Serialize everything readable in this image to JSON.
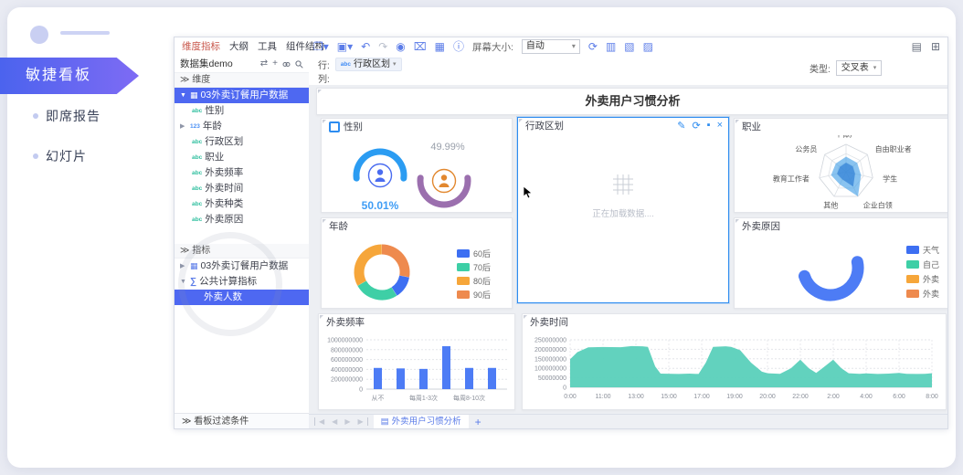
{
  "sidebar": {
    "active_item": "敏捷看板",
    "items": [
      {
        "label": "即席报告"
      },
      {
        "label": "幻灯片"
      }
    ]
  },
  "left_panel": {
    "tabs": [
      {
        "label": "维度指标"
      },
      {
        "label": "大纲"
      },
      {
        "label": "工具"
      },
      {
        "label": "组件结构"
      }
    ],
    "dataset_name": "数据集demo",
    "dimensions_header": "维度",
    "dimension_root": "03外卖订餐用户数据",
    "dimension_fields": [
      "性别",
      "年龄",
      "行政区划",
      "职业",
      "外卖频率",
      "外卖时间",
      "外卖种类",
      "外卖原因"
    ],
    "measures_header": "指标",
    "measure_root": "03外卖订餐用户数据",
    "measure_calc_group": "公共计算指标",
    "measure_selected": "外卖人数",
    "filter_bar_label": "看板过滤条件"
  },
  "toolbar": {
    "screen_size_label": "屏幕大小:",
    "screen_size_value": "自动",
    "icons": [
      {
        "name": "open-menu-icon",
        "glyph": "❐▾"
      },
      {
        "name": "save-menu-icon",
        "glyph": "▣▾"
      },
      {
        "name": "undo-icon",
        "glyph": "↶"
      },
      {
        "name": "redo-icon",
        "glyph": "↷"
      },
      {
        "name": "preview-icon",
        "glyph": "◉"
      },
      {
        "name": "delete-icon",
        "glyph": "⌧"
      },
      {
        "name": "export-image-icon",
        "glyph": "▦"
      },
      {
        "name": "info-icon",
        "glyph": "ⓘ"
      },
      {
        "name": "refresh-icon",
        "glyph": "⟳"
      },
      {
        "name": "grid-layout-icon-1",
        "glyph": "▥"
      },
      {
        "name": "grid-layout-icon-2",
        "glyph": "▧"
      },
      {
        "name": "grid-layout-icon-3",
        "glyph": "▨"
      }
    ],
    "right_icons": [
      {
        "name": "chart-preview-icon",
        "glyph": "▤"
      },
      {
        "name": "widget-grid-icon",
        "glyph": "⊞"
      }
    ]
  },
  "query_area": {
    "row_label": "行:",
    "row_field": "行政区划",
    "col_label": "列:",
    "type_label": "类型:",
    "type_value": "交叉表"
  },
  "dashboard_title": "外卖用户习惯分析",
  "bottom_bar": {
    "tab_label": "外卖用户习惯分析",
    "add_label": "+"
  },
  "colors": {
    "accent_blue": "#4e68f1",
    "toolbar_icon_blue": "#5b7ce8",
    "selected_panel_border": "#2d8cf0",
    "active_tab_text": "#c8574b",
    "bar_blue": "#4d7cf5",
    "area_teal": "#5ad0ba",
    "banner_gradient_start": "#4b63ee",
    "banner_gradient_end": "#7e6bf4"
  },
  "chart_data": [
    {
      "id": "gender",
      "type": "gauge",
      "title": "性别",
      "series": [
        {
          "label": "50.01%",
          "value": 50.01,
          "arc_color": "#2b9cf2",
          "icon_color": "#4a6cf0",
          "label_color": "#3f9df5"
        },
        {
          "label": "49.99%",
          "value": 49.99,
          "arc_color": "#9b6fae",
          "icon_color": "#e2882f",
          "label_color": "#9aa0ab"
        }
      ]
    },
    {
      "id": "admin_region",
      "type": "table",
      "title": "行政区划",
      "status": "loading",
      "loading_text": "正在加载数据...."
    },
    {
      "id": "occupation",
      "type": "radar",
      "title": "职业",
      "axes": [
        "个体户",
        "自由职业者",
        "学生",
        "企业白领",
        "其他",
        "教育工作者",
        "公务员"
      ],
      "values": [
        0.55,
        0.52,
        0.56,
        1.0,
        0.52,
        0.56,
        0.48
      ],
      "max": 1,
      "fill": "#4aa3e8",
      "inner_fill": "#2f7fd4"
    },
    {
      "id": "age",
      "type": "pie",
      "title": "年龄",
      "legend": [
        "60后",
        "70后",
        "80后",
        "90后"
      ],
      "legend_colors": [
        "#3d6ff2",
        "#3ecfa6",
        "#f6a63a",
        "#ee8a4e"
      ],
      "slices": [
        {
          "label": "90后",
          "value": 28,
          "color": "#ee8a4e"
        },
        {
          "label": "60后",
          "value": 13,
          "color": "#3d6ff2"
        },
        {
          "label": "70后",
          "value": 26,
          "color": "#3ecfa6"
        },
        {
          "label": "80后",
          "value": 33,
          "color": "#f6a63a"
        }
      ]
    },
    {
      "id": "reason",
      "type": "pie",
      "title": "外卖原因",
      "status": "loading_partial",
      "arc_color": "#4d7cf5",
      "legend": [
        {
          "label": "天气",
          "color": "#3d6ff2"
        },
        {
          "label": "自己",
          "color": "#3ecfa6"
        },
        {
          "label": "外卖",
          "color": "#f6a63a"
        },
        {
          "label": "外卖",
          "color": "#ee8a4e"
        }
      ]
    },
    {
      "id": "frequency",
      "type": "bar",
      "title": "外卖频率",
      "categories": [
        "从不",
        "",
        "每周1-3次",
        "",
        "每周8-10次",
        ""
      ],
      "values": [
        430000000,
        420000000,
        410000000,
        870000000,
        430000000,
        430000000
      ],
      "y_ticks": [
        "1000000000",
        "800000000",
        "600000000",
        "400000000",
        "200000000",
        "0"
      ],
      "y_max": 1000000000,
      "bar_color": "#4d7cf5"
    },
    {
      "id": "time",
      "type": "area",
      "title": "外卖时间",
      "x_labels": [
        "0:00",
        "11:00",
        "13:00",
        "15:00",
        "17:00",
        "19:00",
        "20:00",
        "22:00",
        "2:00",
        "4:00",
        "6:00",
        "8:00"
      ],
      "y_ticks": [
        "250000000",
        "200000000",
        "150000000",
        "100000000",
        "50000000",
        "0"
      ],
      "y_max": 250000000,
      "color": "#5ad0ba",
      "points": [
        [
          0,
          148
        ],
        [
          0.02,
          185
        ],
        [
          0.05,
          210
        ],
        [
          0.09,
          212
        ],
        [
          0.14,
          211
        ],
        [
          0.17,
          217
        ],
        [
          0.2,
          216
        ],
        [
          0.215,
          213
        ],
        [
          0.235,
          110
        ],
        [
          0.25,
          72
        ],
        [
          0.3,
          70
        ],
        [
          0.33,
          72
        ],
        [
          0.355,
          70
        ],
        [
          0.375,
          130
        ],
        [
          0.395,
          213
        ],
        [
          0.43,
          216
        ],
        [
          0.445,
          213
        ],
        [
          0.47,
          195
        ],
        [
          0.5,
          130
        ],
        [
          0.53,
          82
        ],
        [
          0.546,
          74
        ],
        [
          0.58,
          71
        ],
        [
          0.61,
          100
        ],
        [
          0.636,
          145
        ],
        [
          0.66,
          100
        ],
        [
          0.68,
          76
        ],
        [
          0.7,
          105
        ],
        [
          0.727,
          145
        ],
        [
          0.75,
          100
        ],
        [
          0.77,
          74
        ],
        [
          0.8,
          71
        ],
        [
          0.818,
          73
        ],
        [
          0.85,
          70
        ],
        [
          0.88,
          72
        ],
        [
          0.909,
          76
        ],
        [
          0.93,
          71
        ],
        [
          0.96,
          70
        ],
        [
          0.98,
          71
        ],
        [
          1,
          74
        ]
      ]
    }
  ]
}
